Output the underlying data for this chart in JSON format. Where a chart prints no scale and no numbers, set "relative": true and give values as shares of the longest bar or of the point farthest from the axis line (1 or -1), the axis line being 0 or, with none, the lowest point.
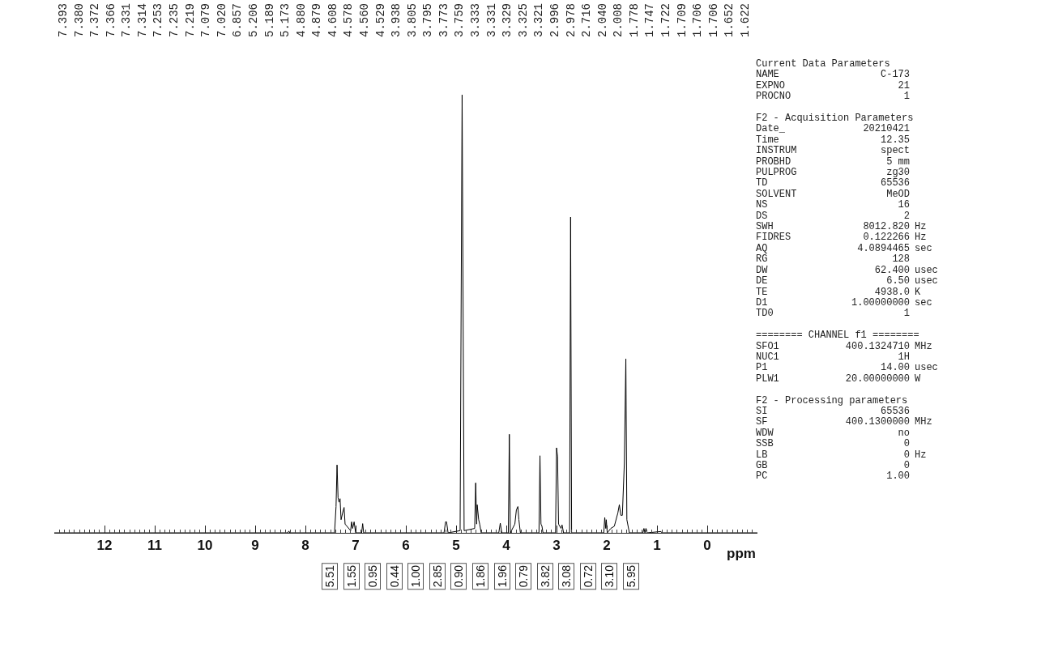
{
  "chart_data": {
    "type": "line",
    "relative": true,
    "xlabel": "ppm",
    "xlim": [
      13,
      -1
    ],
    "xticks": [
      12,
      11,
      10,
      9,
      8,
      7,
      6,
      5,
      4,
      3,
      2,
      1,
      0
    ],
    "grid": false,
    "marker": "none",
    "line_style": "solid",
    "x": [
      13.0,
      8.35,
      8.33,
      8.31,
      7.42,
      7.39,
      7.37,
      7.35,
      7.33,
      7.31,
      7.29,
      7.25,
      7.23,
      7.21,
      7.1,
      7.08,
      7.06,
      7.03,
      7.0,
      6.88,
      6.86,
      6.84,
      5.24,
      5.21,
      5.19,
      5.16,
      4.92,
      4.88,
      4.84,
      4.63,
      4.61,
      4.59,
      4.58,
      4.55,
      4.53,
      4.5,
      4.15,
      4.12,
      4.09,
      3.96,
      3.94,
      3.92,
      3.83,
      3.8,
      3.77,
      3.75,
      3.72,
      3.35,
      3.33,
      3.31,
      3.29,
      3.27,
      3.02,
      3.0,
      2.98,
      2.96,
      2.91,
      2.89,
      2.86,
      2.74,
      2.72,
      2.7,
      2.06,
      2.04,
      2.02,
      2.01,
      1.99,
      1.92,
      1.85,
      1.78,
      1.75,
      1.72,
      1.69,
      1.65,
      1.62,
      1.6,
      1.55,
      1.28,
      1.26,
      1.24,
      1.22,
      1.2,
      0.92,
      0.9,
      -1.0
    ],
    "series": [
      {
        "color": "#000000",
        "values": [
          0,
          0,
          0.004,
          0,
          0,
          0.06,
          0.155,
          0.08,
          0.07,
          0.078,
          0.03,
          0.05,
          0.058,
          0.02,
          0.005,
          0.025,
          0.01,
          0.025,
          0,
          0,
          0.021,
          0,
          0,
          0.025,
          0.025,
          0,
          0.005,
          1.0,
          0.005,
          0.01,
          0.114,
          0.02,
          0.064,
          0.03,
          0.02,
          0,
          0,
          0.022,
          0,
          0,
          0.225,
          0,
          0.02,
          0.052,
          0.06,
          0.03,
          0,
          0,
          0.176,
          0.02,
          0.015,
          0,
          0,
          0.194,
          0.174,
          0.02,
          0.01,
          0.018,
          0,
          0,
          0.721,
          0,
          0,
          0.035,
          0.01,
          0.03,
          0,
          0.01,
          0.015,
          0.045,
          0.064,
          0.04,
          0.04,
          0.159,
          0.397,
          0.03,
          0,
          0,
          0.01,
          0,
          0.01,
          0,
          0.003,
          0,
          0
        ]
      }
    ],
    "annotations": [
      "7.393",
      "7.380",
      "7.372",
      "7.366",
      "7.331",
      "7.314",
      "7.253",
      "7.235",
      "7.219",
      "7.079",
      "7.020",
      "6.857",
      "5.206",
      "5.189",
      "5.173",
      "4.880",
      "4.879",
      "4.608",
      "4.578",
      "4.560",
      "4.529",
      "3.938",
      "3.805",
      "3.795",
      "3.773",
      "3.759",
      "3.333",
      "3.331",
      "3.329",
      "3.325",
      "3.321",
      "2.996",
      "2.978",
      "2.716",
      "2.040",
      "2.008",
      "1.778",
      "1.747",
      "1.722",
      "1.709",
      "1.706",
      "1.706",
      "1.652",
      "1.622",
      "5.51",
      "1.55",
      "0.95",
      "0.44",
      "1.00",
      "2.85",
      "0.90",
      "1.86",
      "1.96",
      "0.79",
      "3.82",
      "3.08",
      "0.72",
      "3.10",
      "5.95",
      "Current Data Parameters",
      "NAME  C-173",
      "EXPNO  21",
      "PROCNO  1",
      "F2 - Acquisition Parameters",
      "Date_  20210421",
      "Time  12.35",
      "INSTRUM  spect",
      "PROBHD  5 mm",
      "PULPROG  zg30",
      "TD  65536",
      "SOLVENT  MeOD",
      "NS  16",
      "DS  2",
      "SWH  8012.820  Hz",
      "FIDRES  0.122266  Hz",
      "AQ  4.0894465  sec",
      "RG  128",
      "DW  62.400  usec",
      "DE  6.50  usec",
      "TE  4938.0  K",
      "D1  1.00000000  sec",
      "TD0  1",
      "======== CHANNEL f1 ========",
      "SFO1  400.1324710  MHz",
      "NUC1  1H",
      "P1  14.00  usec",
      "PLW1  20.00000000  W",
      "F2 - Processing parameters",
      "SI  65536",
      "SF  400.1300000  MHz",
      "WDW  no",
      "SSB  0",
      "LB  0  Hz",
      "GB  0",
      "PC  1.00"
    ]
  }
}
